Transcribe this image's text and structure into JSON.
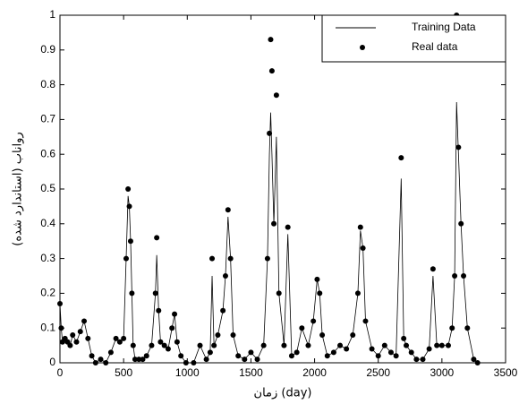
{
  "chart_data": {
    "type": "line",
    "x_label": "زمان (day)",
    "y_label": "رواناب (استاندارد شده)",
    "x": [
      0,
      10,
      20,
      40,
      60,
      80,
      100,
      130,
      160,
      190,
      220,
      250,
      280,
      320,
      360,
      400,
      440,
      470,
      500,
      520,
      535,
      545,
      555,
      565,
      575,
      590,
      620,
      650,
      680,
      720,
      750,
      760,
      775,
      790,
      820,
      850,
      880,
      900,
      920,
      950,
      990,
      1050,
      1100,
      1150,
      1180,
      1195,
      1210,
      1240,
      1280,
      1300,
      1320,
      1340,
      1360,
      1400,
      1450,
      1500,
      1550,
      1600,
      1630,
      1645,
      1655,
      1665,
      1680,
      1700,
      1720,
      1760,
      1790,
      1820,
      1860,
      1900,
      1950,
      1990,
      2020,
      2040,
      2060,
      2100,
      2150,
      2200,
      2250,
      2300,
      2340,
      2360,
      2380,
      2400,
      2450,
      2500,
      2550,
      2600,
      2640,
      2680,
      2700,
      2720,
      2760,
      2800,
      2850,
      2900,
      2930,
      2960,
      3000,
      3050,
      3080,
      3100,
      3115,
      3130,
      3150,
      3170,
      3200,
      3250,
      3280
    ],
    "series": [
      {
        "name": "Training Data",
        "style": "line",
        "color": "#000000",
        "values": [
          0.17,
          0.1,
          0.06,
          0.07,
          0.06,
          0.05,
          0.08,
          0.06,
          0.09,
          0.12,
          0.07,
          0.02,
          0.0,
          0.01,
          0.0,
          0.03,
          0.07,
          0.06,
          0.07,
          0.3,
          0.48,
          0.45,
          0.35,
          0.2,
          0.05,
          0.01,
          0.01,
          0.01,
          0.02,
          0.05,
          0.2,
          0.31,
          0.15,
          0.06,
          0.05,
          0.04,
          0.1,
          0.14,
          0.06,
          0.02,
          0.0,
          0.0,
          0.05,
          0.01,
          0.03,
          0.25,
          0.05,
          0.08,
          0.15,
          0.25,
          0.42,
          0.3,
          0.08,
          0.02,
          0.01,
          0.03,
          0.01,
          0.05,
          0.3,
          0.6,
          0.72,
          0.6,
          0.4,
          0.65,
          0.2,
          0.05,
          0.37,
          0.02,
          0.03,
          0.1,
          0.05,
          0.12,
          0.24,
          0.2,
          0.08,
          0.02,
          0.03,
          0.05,
          0.04,
          0.08,
          0.2,
          0.38,
          0.33,
          0.12,
          0.04,
          0.02,
          0.05,
          0.03,
          0.02,
          0.53,
          0.07,
          0.05,
          0.03,
          0.01,
          0.01,
          0.04,
          0.25,
          0.05,
          0.05,
          0.05,
          0.1,
          0.25,
          0.75,
          0.6,
          0.4,
          0.25,
          0.1,
          0.01,
          0.0
        ]
      },
      {
        "name": "Real data",
        "style": "markers",
        "color": "#000000",
        "values": [
          0.17,
          0.1,
          0.06,
          0.07,
          0.06,
          0.05,
          0.08,
          0.06,
          0.09,
          0.12,
          0.07,
          0.02,
          0.0,
          0.01,
          0.0,
          0.03,
          0.07,
          0.06,
          0.07,
          0.3,
          0.5,
          0.45,
          0.35,
          0.2,
          0.05,
          0.01,
          0.01,
          0.01,
          0.02,
          0.05,
          0.2,
          0.36,
          0.15,
          0.06,
          0.05,
          0.04,
          0.1,
          0.14,
          0.06,
          0.02,
          0.0,
          0.0,
          0.05,
          0.01,
          0.03,
          0.3,
          0.05,
          0.08,
          0.15,
          0.25,
          0.44,
          0.3,
          0.08,
          0.02,
          0.01,
          0.03,
          0.01,
          0.05,
          0.3,
          0.66,
          0.93,
          0.84,
          0.4,
          0.77,
          0.2,
          0.05,
          0.39,
          0.02,
          0.03,
          0.1,
          0.05,
          0.12,
          0.24,
          0.2,
          0.08,
          0.02,
          0.03,
          0.05,
          0.04,
          0.08,
          0.2,
          0.39,
          0.33,
          0.12,
          0.04,
          0.02,
          0.05,
          0.03,
          0.02,
          0.59,
          0.07,
          0.05,
          0.03,
          0.01,
          0.01,
          0.04,
          0.27,
          0.05,
          0.05,
          0.05,
          0.1,
          0.25,
          1.0,
          0.62,
          0.4,
          0.25,
          0.1,
          0.01,
          0.0
        ]
      }
    ],
    "xlim": [
      0,
      3500
    ],
    "xticks": [
      0,
      500,
      1000,
      1500,
      2000,
      2500,
      3000,
      3500
    ],
    "ylim": [
      0,
      1
    ],
    "yticks": [
      0,
      0.1,
      0.2,
      0.3,
      0.4,
      0.5,
      0.6,
      0.7,
      0.8,
      0.9,
      1
    ],
    "legend": "upper right"
  }
}
